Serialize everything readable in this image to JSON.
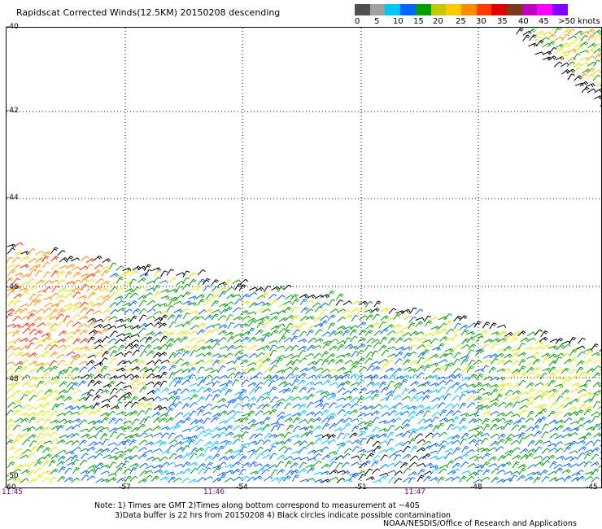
{
  "title": "Rapidscat Corrected Winds(12.5KM) 20150208 descending",
  "colorbar": {
    "labels": [
      "0",
      "5",
      "10",
      "15",
      "20",
      "25",
      "30",
      "35",
      "40",
      "45",
      ">50 knots"
    ],
    "colors": [
      "#505050",
      "#a0a0a0",
      "#00c8ff",
      "#0064ff",
      "#00a000",
      "#c8c800",
      "#ffc800",
      "#ff8c00",
      "#ff3c00",
      "#e00000",
      "#7a3a1a",
      "#c000c0",
      "#ff00ff",
      "#8000ff"
    ]
  },
  "map": {
    "lat_labels": [
      "-40",
      "-42",
      "-44",
      "-46",
      "-48",
      "-50"
    ],
    "lon_labels": [
      "-60",
      "-57",
      "-54",
      "-51",
      "-48",
      "-45"
    ],
    "time_labels": [
      "11:45",
      "11:46",
      "11:47"
    ],
    "lat_range": [
      -50,
      -40
    ],
    "lon_range": [
      -60,
      -45
    ],
    "grid": "dotted",
    "contamination_color": "#000000"
  },
  "note": {
    "line1": "Note: 1) Times are GMT 2)Times along bottom correspond to measurement at ~40S",
    "line2": "3)Data buffer is 22 hrs from 20150208 4) Black circles indicate possible contamination"
  },
  "credit": "NOAA/NESDIS/Office of Research and Applications"
}
